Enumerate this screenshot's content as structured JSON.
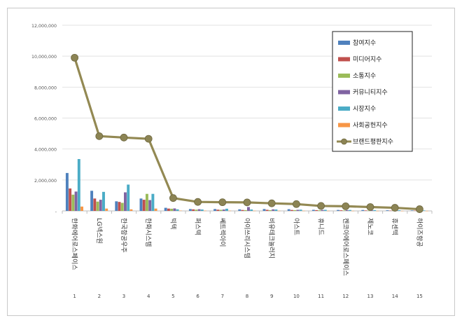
{
  "chart_data": {
    "type": "bar",
    "categories": [
      "한화에어로스페이스",
      "LG넥스원",
      "한국항공우주",
      "한화시스템",
      "빅텍",
      "퍼스텍",
      "쎄트렉아이",
      "아이쓰리시스템",
      "비유테크놀러지",
      "아스트",
      "휴니드",
      "켄코아에어로스페이스",
      "제노코",
      "휴센텍",
      "하이즈항공"
    ],
    "ranks": [
      "1",
      "2",
      "3",
      "4",
      "5",
      "6",
      "7",
      "8",
      "9",
      "10",
      "11",
      "12",
      "13",
      "14",
      "15"
    ],
    "ylim": [
      0,
      12000000
    ],
    "yticks": [
      0,
      2000000,
      4000000,
      6000000,
      8000000,
      10000000,
      12000000
    ],
    "ytick_labels": [
      "-",
      "2,000,000",
      "4,000,000",
      "6,000,000",
      "8,000,000",
      "10,000,000",
      "12,000,000"
    ],
    "grid": true,
    "legend_position": "top-right",
    "series": [
      {
        "name": "참여지수",
        "color": "#4f81bd",
        "values": [
          2450000,
          1300000,
          620000,
          800000,
          200000,
          120000,
          120000,
          100000,
          120000,
          110000,
          70000,
          60000,
          60000,
          40000,
          30000
        ]
      },
      {
        "name": "미디어지수",
        "color": "#c0504d",
        "values": [
          1450000,
          800000,
          580000,
          720000,
          150000,
          100000,
          80000,
          60000,
          70000,
          60000,
          50000,
          40000,
          30000,
          20000,
          20000
        ]
      },
      {
        "name": "소통지수",
        "color": "#9bbb59",
        "values": [
          1050000,
          600000,
          520000,
          1100000,
          140000,
          80000,
          70000,
          50000,
          50000,
          50000,
          40000,
          30000,
          20000,
          20000,
          10000
        ]
      },
      {
        "name": "커뮤니티지수",
        "color": "#8064a2",
        "values": [
          1250000,
          720000,
          1200000,
          700000,
          160000,
          110000,
          90000,
          250000,
          100000,
          70000,
          60000,
          50000,
          40000,
          30000,
          20000
        ]
      },
      {
        "name": "시장지수",
        "color": "#4bacc6",
        "values": [
          3350000,
          1230000,
          1700000,
          1100000,
          100000,
          90000,
          140000,
          90000,
          90000,
          80000,
          70000,
          60000,
          50000,
          40000,
          30000
        ]
      },
      {
        "name": "사회공헌지수",
        "color": "#f79646",
        "values": [
          280000,
          150000,
          100000,
          150000,
          20000,
          15000,
          15000,
          10000,
          10000,
          10000,
          8000,
          8000,
          5000,
          5000,
          5000
        ]
      }
    ],
    "line_series": {
      "name": "브랜드평판지수",
      "color": "#938953",
      "marker_color": "#8c8454",
      "values": [
        9900000,
        4830000,
        4740000,
        4660000,
        830000,
        580000,
        560000,
        550000,
        490000,
        440000,
        320000,
        300000,
        250000,
        200000,
        110000
      ]
    }
  }
}
